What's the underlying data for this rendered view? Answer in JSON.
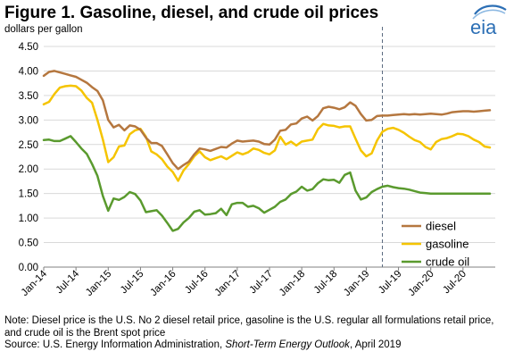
{
  "header": {
    "title": "Figure 1. Gasoline, diesel, and crude oil prices",
    "units": "dollars per gallon"
  },
  "logo": {
    "text": "eia",
    "icon": "eia-logo-icon"
  },
  "note": {
    "line1": "Note: Diesel price is the U.S. No 2 diesel retail price, gasoline is the U.S. regular all formulations retail price, and crude oil is the Brent spot price",
    "source_prefix": "Source: U.S. Energy Information Administration, ",
    "source_title": "Short-Term Energy Outlook",
    "source_suffix": ", April 2019"
  },
  "chart_data": {
    "type": "line",
    "title": "Figure 1. Gasoline, diesel, and crude oil prices",
    "ylabel": "dollars per gallon",
    "ylim": [
      0,
      4.5
    ],
    "yticks": [
      "0.00",
      "0.50",
      "1.00",
      "1.50",
      "2.00",
      "2.50",
      "3.00",
      "3.50",
      "4.00",
      "4.50"
    ],
    "xticks": [
      "Jan-14",
      "Jul-14",
      "Jan-15",
      "Jul-15",
      "Jan-16",
      "Jul-16",
      "Jan-17",
      "Jul-17",
      "Jan-18",
      "Jul-18",
      "Jan-19",
      "Jul-19",
      "Jan-20",
      "Jul-20"
    ],
    "x_start": "2014-01",
    "x_end": "2020-12",
    "forecast_start": "2019-04",
    "grid": "horizontal",
    "legend_position": "right",
    "series": [
      {
        "name": "diesel",
        "color": "#b5773f",
        "values": [
          3.9,
          3.98,
          4.0,
          3.97,
          3.94,
          3.91,
          3.88,
          3.82,
          3.76,
          3.67,
          3.59,
          3.4,
          3.0,
          2.85,
          2.9,
          2.79,
          2.89,
          2.87,
          2.8,
          2.64,
          2.53,
          2.53,
          2.47,
          2.3,
          2.12,
          2.0,
          2.08,
          2.15,
          2.3,
          2.42,
          2.4,
          2.37,
          2.41,
          2.45,
          2.44,
          2.52,
          2.58,
          2.56,
          2.57,
          2.58,
          2.56,
          2.51,
          2.5,
          2.6,
          2.78,
          2.8,
          2.91,
          2.93,
          3.03,
          3.07,
          2.99,
          3.08,
          3.24,
          3.27,
          3.25,
          3.22,
          3.26,
          3.36,
          3.29,
          3.12,
          2.99,
          3.0,
          3.08,
          3.09,
          3.09,
          3.1,
          3.11,
          3.12,
          3.11,
          3.12,
          3.11,
          3.12,
          3.13,
          3.12,
          3.11,
          3.13,
          3.16,
          3.17,
          3.18,
          3.18,
          3.17,
          3.18,
          3.19,
          3.2
        ]
      },
      {
        "name": "gasoline",
        "color": "#f5c400",
        "values": [
          3.32,
          3.37,
          3.53,
          3.66,
          3.69,
          3.7,
          3.69,
          3.6,
          3.45,
          3.35,
          3.0,
          2.6,
          2.14,
          2.24,
          2.46,
          2.48,
          2.71,
          2.79,
          2.82,
          2.66,
          2.36,
          2.3,
          2.2,
          2.05,
          1.94,
          1.76,
          1.97,
          2.1,
          2.26,
          2.36,
          2.24,
          2.18,
          2.22,
          2.26,
          2.2,
          2.27,
          2.34,
          2.3,
          2.34,
          2.42,
          2.39,
          2.33,
          2.3,
          2.38,
          2.66,
          2.5,
          2.56,
          2.48,
          2.56,
          2.58,
          2.6,
          2.81,
          2.92,
          2.89,
          2.88,
          2.85,
          2.87,
          2.87,
          2.62,
          2.38,
          2.26,
          2.32,
          2.58,
          2.76,
          2.82,
          2.84,
          2.8,
          2.74,
          2.66,
          2.59,
          2.55,
          2.45,
          2.4,
          2.55,
          2.61,
          2.63,
          2.67,
          2.72,
          2.71,
          2.67,
          2.6,
          2.55,
          2.46,
          2.44
        ]
      },
      {
        "name": "crude oil",
        "color": "#5a9a2e",
        "values": [
          2.59,
          2.6,
          2.57,
          2.57,
          2.62,
          2.67,
          2.55,
          2.42,
          2.31,
          2.1,
          1.86,
          1.45,
          1.15,
          1.4,
          1.37,
          1.43,
          1.53,
          1.49,
          1.36,
          1.12,
          1.14,
          1.16,
          1.05,
          0.9,
          0.74,
          0.78,
          0.91,
          1.0,
          1.13,
          1.16,
          1.07,
          1.08,
          1.1,
          1.19,
          1.06,
          1.28,
          1.31,
          1.31,
          1.23,
          1.25,
          1.2,
          1.11,
          1.17,
          1.23,
          1.33,
          1.38,
          1.49,
          1.54,
          1.64,
          1.56,
          1.59,
          1.71,
          1.79,
          1.77,
          1.78,
          1.72,
          1.88,
          1.93,
          1.56,
          1.38,
          1.42,
          1.53,
          1.59,
          1.64,
          1.66,
          1.63,
          1.61,
          1.6,
          1.58,
          1.55,
          1.52,
          1.51,
          1.5,
          1.5,
          1.5,
          1.5,
          1.5,
          1.5,
          1.5,
          1.5,
          1.5,
          1.5,
          1.5,
          1.5
        ]
      }
    ]
  }
}
